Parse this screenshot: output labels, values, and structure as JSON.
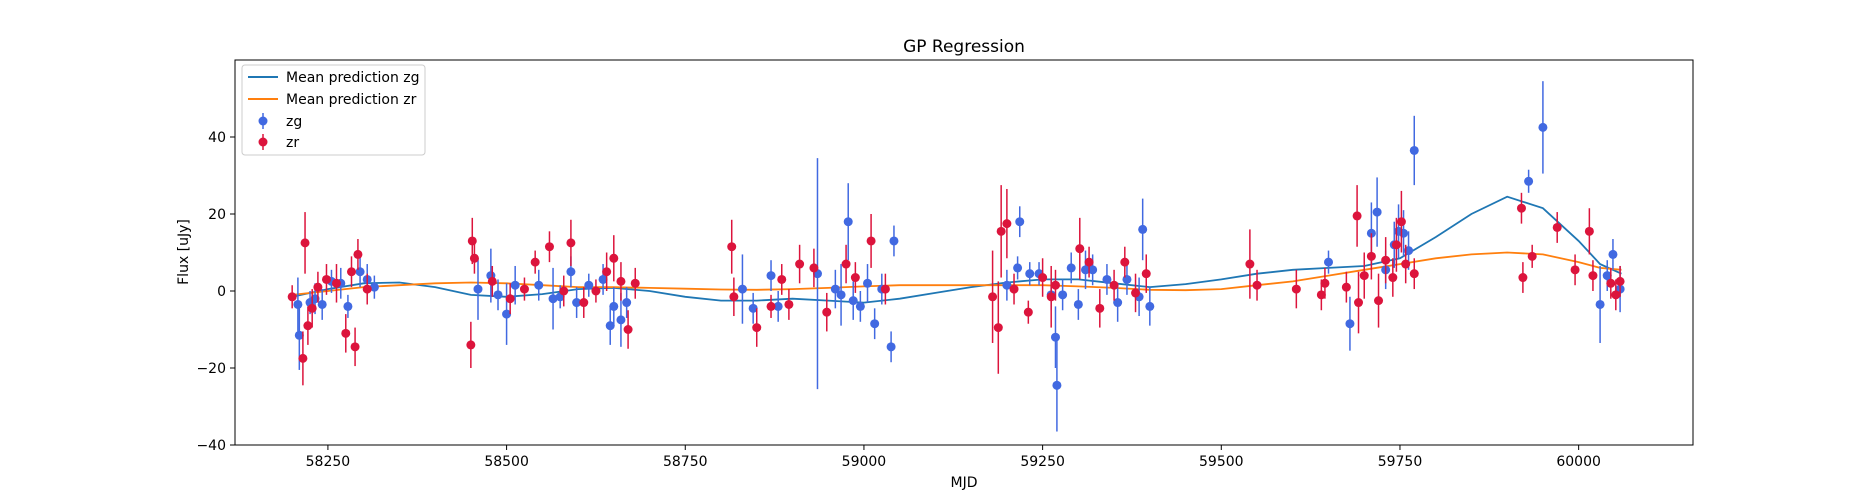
{
  "chart_data": {
    "type": "scatter",
    "title": "GP Regression",
    "xlabel": "MJD",
    "ylabel": "Flux [uJy]",
    "xlim": [
      58120,
      60160
    ],
    "ylim": [
      -40,
      60
    ],
    "xticks": [
      58250,
      58500,
      58750,
      59000,
      59250,
      59500,
      59750,
      60000
    ],
    "yticks": [
      -40,
      -20,
      0,
      20,
      40
    ],
    "xtick_labels": [
      "58250",
      "58500",
      "58750",
      "59000",
      "59250",
      "59500",
      "59750",
      "60000"
    ],
    "ytick_labels": [
      "−40",
      "−20",
      "0",
      "20",
      "40"
    ],
    "grid": false,
    "legend_position": "top-left",
    "legend": {
      "line_zg": "Mean prediction zg",
      "line_zr": "Mean prediction zr",
      "points_zg": "zg",
      "points_zr": "zr"
    },
    "colors": {
      "line_zg": "#1f77b4",
      "line_zr": "#ff7f0e",
      "points_zg": "#4169e1",
      "points_zr": "#dc143c"
    },
    "series": [
      {
        "name": "Mean prediction zg",
        "kind": "line",
        "x": [
          58200,
          58250,
          58300,
          58350,
          58400,
          58450,
          58500,
          58550,
          58600,
          58650,
          58700,
          58750,
          58800,
          58850,
          58900,
          58950,
          59000,
          59050,
          59100,
          59150,
          59200,
          59250,
          59300,
          59350,
          59400,
          59450,
          59500,
          59550,
          59600,
          59650,
          59700,
          59750,
          59800,
          59850,
          59900,
          59950,
          60000,
          60030,
          60060
        ],
        "y": [
          -1.5,
          0.5,
          2.0,
          2.2,
          1.0,
          -1.0,
          -1.5,
          -0.8,
          0.5,
          0.8,
          0.0,
          -1.5,
          -2.5,
          -2.5,
          -2.0,
          -2.5,
          -3.0,
          -2.0,
          -0.5,
          1.0,
          2.2,
          3.0,
          3.0,
          2.0,
          1.0,
          1.8,
          3.0,
          4.5,
          5.5,
          6.0,
          6.5,
          8.5,
          14.0,
          20.0,
          24.5,
          21.5,
          13.0,
          7.0,
          4.5
        ]
      },
      {
        "name": "Mean prediction zr",
        "kind": "line",
        "x": [
          58200,
          58250,
          58300,
          58350,
          58400,
          58450,
          58500,
          58550,
          58600,
          58650,
          58700,
          58750,
          58800,
          58850,
          58900,
          58950,
          59000,
          59050,
          59100,
          59150,
          59200,
          59250,
          59300,
          59350,
          59400,
          59450,
          59500,
          59550,
          59600,
          59650,
          59700,
          59750,
          59800,
          59850,
          59900,
          59950,
          60000,
          60030,
          60060
        ],
        "y": [
          -1.0,
          0.0,
          1.0,
          1.5,
          2.0,
          2.2,
          2.0,
          1.5,
          1.0,
          1.0,
          0.8,
          0.6,
          0.4,
          0.3,
          0.5,
          0.8,
          1.2,
          1.5,
          1.5,
          1.5,
          1.5,
          1.5,
          1.2,
          0.8,
          0.3,
          0.2,
          0.5,
          1.5,
          2.5,
          4.0,
          5.5,
          7.0,
          8.5,
          9.5,
          10.0,
          9.5,
          7.5,
          6.0,
          5.5
        ]
      },
      {
        "name": "zg",
        "kind": "errorbar",
        "points": [
          [
            58208,
            -3.5,
            7
          ],
          [
            58210,
            -11.5,
            9
          ],
          [
            58225,
            -3.0,
            3
          ],
          [
            58232,
            -2.0,
            4
          ],
          [
            58242,
            -3.5,
            4
          ],
          [
            58255,
            2.5,
            3
          ],
          [
            58268,
            2.0,
            4
          ],
          [
            58278,
            -4.0,
            3
          ],
          [
            58295,
            5.0,
            4
          ],
          [
            58305,
            3.0,
            4
          ],
          [
            58315,
            1.0,
            3
          ],
          [
            58460,
            0.5,
            8
          ],
          [
            58478,
            4.0,
            7
          ],
          [
            58488,
            -1.0,
            4
          ],
          [
            58500,
            -6.0,
            8
          ],
          [
            58512,
            1.5,
            5
          ],
          [
            58545,
            1.5,
            4
          ],
          [
            58565,
            -2.0,
            8
          ],
          [
            58575,
            -1.5,
            3
          ],
          [
            58590,
            5.0,
            4
          ],
          [
            58598,
            -3.0,
            4
          ],
          [
            58615,
            1.5,
            3
          ],
          [
            58635,
            3.0,
            4
          ],
          [
            58645,
            -9.0,
            5
          ],
          [
            58650,
            -4.0,
            5
          ],
          [
            58660,
            -7.5,
            7
          ],
          [
            58668,
            -3.0,
            4
          ],
          [
            58830,
            0.5,
            9
          ],
          [
            58845,
            -4.5,
            4
          ],
          [
            58870,
            4.0,
            4
          ],
          [
            58880,
            -4.0,
            4
          ],
          [
            58935,
            4.5,
            30
          ],
          [
            58960,
            0.5,
            5
          ],
          [
            58968,
            -1.0,
            8
          ],
          [
            58978,
            18.0,
            10
          ],
          [
            58985,
            -2.5,
            5
          ],
          [
            58995,
            -4.0,
            4
          ],
          [
            59005,
            2.0,
            5
          ],
          [
            59015,
            -8.5,
            4
          ],
          [
            59025,
            0.5,
            4
          ],
          [
            59038,
            -14.5,
            4
          ],
          [
            59042,
            13.0,
            4
          ],
          [
            59200,
            1.5,
            4
          ],
          [
            59215,
            6.0,
            3
          ],
          [
            59218,
            18.0,
            4
          ],
          [
            59232,
            4.5,
            3
          ],
          [
            59245,
            4.5,
            3
          ],
          [
            59262,
            -1.0,
            4
          ],
          [
            59268,
            -12.0,
            8
          ],
          [
            59270,
            -24.5,
            12
          ],
          [
            59278,
            -1.0,
            4
          ],
          [
            59290,
            6.0,
            4
          ],
          [
            59300,
            -3.5,
            4
          ],
          [
            59310,
            5.5,
            5
          ],
          [
            59320,
            5.5,
            4
          ],
          [
            59340,
            3.0,
            4
          ],
          [
            59355,
            -3.0,
            5
          ],
          [
            59368,
            3.0,
            4
          ],
          [
            59385,
            -1.5,
            5
          ],
          [
            59390,
            16.0,
            8
          ],
          [
            59400,
            -4.0,
            5
          ],
          [
            59650,
            7.5,
            3
          ],
          [
            59680,
            -8.5,
            7
          ],
          [
            59710,
            15.0,
            8
          ],
          [
            59718,
            20.5,
            9
          ],
          [
            59730,
            5.5,
            5
          ],
          [
            59742,
            12.0,
            6
          ],
          [
            59748,
            15.5,
            7
          ],
          [
            59755,
            15.0,
            6
          ],
          [
            59762,
            10.5,
            5
          ],
          [
            59770,
            36.5,
            9
          ],
          [
            59930,
            28.5,
            3
          ],
          [
            59950,
            42.5,
            12
          ],
          [
            60030,
            -3.5,
            10
          ],
          [
            60040,
            4.0,
            4
          ],
          [
            60048,
            9.5,
            4
          ],
          [
            60058,
            0.5,
            6
          ]
        ]
      },
      {
        "name": "zr",
        "kind": "errorbar",
        "points": [
          [
            58200,
            -1.5,
            3
          ],
          [
            58215,
            -17.5,
            7
          ],
          [
            58218,
            12.5,
            8
          ],
          [
            58222,
            -9.0,
            5
          ],
          [
            58228,
            -4.5,
            5
          ],
          [
            58236,
            1.0,
            4
          ],
          [
            58248,
            3.0,
            4
          ],
          [
            58262,
            2.0,
            5
          ],
          [
            58275,
            -11.0,
            5
          ],
          [
            58283,
            5.0,
            4
          ],
          [
            58288,
            -14.5,
            5
          ],
          [
            58292,
            9.5,
            4
          ],
          [
            58305,
            0.5,
            4
          ],
          [
            58450,
            -14.0,
            6
          ],
          [
            58452,
            13.0,
            6
          ],
          [
            58455,
            8.5,
            4
          ],
          [
            58480,
            2.5,
            4
          ],
          [
            58505,
            -2.0,
            4
          ],
          [
            58525,
            0.5,
            3
          ],
          [
            58540,
            7.5,
            3
          ],
          [
            58560,
            11.5,
            4
          ],
          [
            58580,
            0.0,
            4
          ],
          [
            58590,
            12.5,
            6
          ],
          [
            58608,
            -3.0,
            4
          ],
          [
            58625,
            0.0,
            3
          ],
          [
            58640,
            5.0,
            5
          ],
          [
            58650,
            8.5,
            6
          ],
          [
            58660,
            2.5,
            5
          ],
          [
            58670,
            -10.0,
            5
          ],
          [
            58680,
            2.0,
            4
          ],
          [
            58815,
            11.5,
            7
          ],
          [
            58818,
            -1.5,
            5
          ],
          [
            58850,
            -9.5,
            5
          ],
          [
            58870,
            -4.0,
            3
          ],
          [
            58885,
            3.0,
            4
          ],
          [
            58895,
            -3.5,
            4
          ],
          [
            58910,
            7.0,
            5
          ],
          [
            58930,
            6.0,
            5
          ],
          [
            58948,
            -5.5,
            5
          ],
          [
            58975,
            7.0,
            5
          ],
          [
            58988,
            3.5,
            4
          ],
          [
            59010,
            13.0,
            7
          ],
          [
            59030,
            0.5,
            4
          ],
          [
            59180,
            -1.5,
            12
          ],
          [
            59188,
            -9.5,
            12
          ],
          [
            59192,
            15.5,
            12
          ],
          [
            59200,
            17.5,
            9
          ],
          [
            59210,
            0.5,
            4
          ],
          [
            59230,
            -5.5,
            3
          ],
          [
            59250,
            3.5,
            5
          ],
          [
            59262,
            -1.5,
            8
          ],
          [
            59268,
            1.5,
            4
          ],
          [
            59302,
            11.0,
            8
          ],
          [
            59315,
            7.5,
            4
          ],
          [
            59330,
            -4.5,
            5
          ],
          [
            59350,
            1.5,
            4
          ],
          [
            59365,
            7.5,
            4
          ],
          [
            59380,
            -0.5,
            5
          ],
          [
            59395,
            4.5,
            5
          ],
          [
            59540,
            7.0,
            9
          ],
          [
            59550,
            1.5,
            4
          ],
          [
            59605,
            0.5,
            5
          ],
          [
            59640,
            -1.0,
            4
          ],
          [
            59645,
            2.0,
            4
          ],
          [
            59675,
            1.0,
            4
          ],
          [
            59690,
            19.5,
            8
          ],
          [
            59692,
            -3.0,
            8
          ],
          [
            59700,
            4.0,
            6
          ],
          [
            59710,
            9.0,
            6
          ],
          [
            59720,
            -2.5,
            7
          ],
          [
            59730,
            8.0,
            6
          ],
          [
            59740,
            3.5,
            5
          ],
          [
            59745,
            12.0,
            7
          ],
          [
            59752,
            18.0,
            8
          ],
          [
            59758,
            7.0,
            5
          ],
          [
            59770,
            4.5,
            4
          ],
          [
            59920,
            21.5,
            4
          ],
          [
            59922,
            3.5,
            4
          ],
          [
            59935,
            9.0,
            3
          ],
          [
            59970,
            16.5,
            4
          ],
          [
            59995,
            5.5,
            4
          ],
          [
            60015,
            15.5,
            6
          ],
          [
            60020,
            4.0,
            4
          ],
          [
            60045,
            2.0,
            4
          ],
          [
            60052,
            -1.0,
            4
          ],
          [
            60058,
            2.5,
            4
          ]
        ]
      }
    ]
  }
}
